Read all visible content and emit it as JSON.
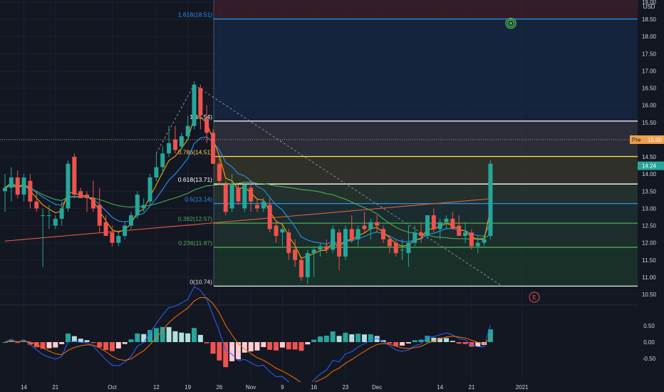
{
  "chart_data": {
    "type": "candlestick",
    "currency": "USD",
    "colors": {
      "bg": "#131722",
      "up": "#26a69a",
      "down": "#ef5350",
      "ma_blue": "#2196f3",
      "ma_orange": "#f7a600",
      "ma_green": "#4caf50",
      "ma_red": "#e65a3c",
      "macd": "#2962ff",
      "signal": "#ff6d00",
      "grid": "#1e2230"
    },
    "price_axis": {
      "min": 10.5,
      "max": 19.0,
      "ticks": [
        "19.00",
        "18.50",
        "18.00",
        "17.50",
        "17.00",
        "16.50",
        "16.00",
        "15.50",
        "15.00",
        "14.50",
        "14.00",
        "13.50",
        "13.00",
        "12.50",
        "12.00",
        "11.50",
        "11.00",
        "10.50"
      ]
    },
    "macd_axis": {
      "ticks": [
        "0.50",
        "0.00",
        "-0.50"
      ]
    },
    "time_ticks": [
      {
        "label": "14",
        "i": 3
      },
      {
        "label": "21",
        "i": 8
      },
      {
        "label": "Oct",
        "i": 17
      },
      {
        "label": "12",
        "i": 24
      },
      {
        "label": "19",
        "i": 29
      },
      {
        "label": "26",
        "i": 34
      },
      {
        "label": "Nov",
        "i": 39
      },
      {
        "label": "9",
        "i": 44
      },
      {
        "label": "16",
        "i": 49
      },
      {
        "label": "23",
        "i": 54
      },
      {
        "label": "Dec",
        "i": 59
      },
      {
        "label": "14",
        "i": 69
      },
      {
        "label": "21",
        "i": 74
      },
      {
        "label": "2021",
        "i": 82
      }
    ],
    "candles": [
      [
        13.5,
        14.0,
        12.9,
        13.6
      ],
      [
        13.6,
        14.2,
        13.2,
        13.9
      ],
      [
        13.9,
        14.1,
        13.3,
        13.4
      ],
      [
        13.4,
        14.0,
        13.2,
        13.9
      ],
      [
        13.8,
        14.0,
        13.0,
        13.2
      ],
      [
        13.2,
        13.5,
        12.9,
        13.0
      ],
      [
        12.8,
        13.0,
        11.3,
        12.8
      ],
      [
        12.8,
        13.1,
        12.4,
        12.8
      ],
      [
        12.5,
        12.8,
        12.4,
        12.7
      ],
      [
        12.7,
        13.2,
        12.5,
        13.0
      ],
      [
        13.0,
        14.4,
        12.9,
        14.3
      ],
      [
        14.5,
        14.6,
        13.3,
        13.4
      ],
      [
        13.5,
        13.6,
        13.3,
        13.3
      ],
      [
        13.4,
        13.5,
        12.9,
        13.3
      ],
      [
        13.3,
        13.8,
        12.9,
        13.0
      ],
      [
        13.1,
        13.6,
        12.3,
        12.5
      ],
      [
        12.6,
        12.8,
        12.2,
        12.2
      ],
      [
        12.3,
        12.5,
        11.9,
        12.0
      ],
      [
        12.0,
        12.3,
        11.9,
        12.2
      ],
      [
        12.2,
        12.6,
        12.1,
        12.5
      ],
      [
        12.5,
        12.9,
        12.4,
        12.8
      ],
      [
        12.8,
        13.5,
        12.7,
        13.4
      ],
      [
        13.0,
        13.3,
        12.9,
        13.1
      ],
      [
        13.2,
        14.0,
        13.1,
        13.9
      ],
      [
        13.9,
        14.6,
        13.8,
        14.2
      ],
      [
        14.2,
        14.8,
        14.0,
        14.6
      ],
      [
        14.6,
        15.4,
        14.5,
        14.9
      ],
      [
        15.0,
        15.4,
        14.6,
        14.7
      ],
      [
        14.8,
        15.2,
        14.7,
        15.1
      ],
      [
        15.1,
        15.7,
        15.0,
        15.4
      ],
      [
        15.4,
        16.7,
        15.3,
        16.6
      ],
      [
        16.5,
        16.6,
        15.3,
        15.7
      ],
      [
        15.6,
        16.0,
        14.9,
        15.2
      ],
      [
        15.2,
        15.3,
        14.3,
        14.3
      ],
      [
        14.3,
        14.5,
        13.7,
        13.8
      ],
      [
        13.7,
        13.8,
        12.8,
        12.9
      ],
      [
        13.0,
        14.0,
        12.9,
        13.7
      ],
      [
        13.6,
        13.7,
        13.1,
        13.2
      ],
      [
        13.0,
        13.7,
        12.9,
        13.7
      ],
      [
        13.6,
        13.8,
        12.9,
        13.2
      ],
      [
        13.1,
        13.3,
        12.9,
        13.0
      ],
      [
        13.0,
        13.3,
        12.9,
        13.2
      ],
      [
        13.1,
        13.3,
        12.3,
        12.4
      ],
      [
        12.5,
        12.6,
        12.0,
        12.2
      ],
      [
        12.3,
        12.5,
        11.9,
        12.4
      ],
      [
        12.3,
        12.4,
        11.5,
        11.7
      ],
      [
        11.8,
        12.1,
        11.3,
        11.5
      ],
      [
        11.5,
        11.6,
        10.9,
        11.0
      ],
      [
        11.0,
        11.8,
        10.8,
        11.7
      ],
      [
        11.7,
        11.9,
        11.0,
        11.8
      ],
      [
        11.8,
        12.0,
        11.6,
        11.9
      ],
      [
        11.9,
        12.1,
        11.7,
        11.8
      ],
      [
        11.8,
        12.5,
        11.7,
        12.4
      ],
      [
        12.3,
        12.4,
        11.2,
        11.6
      ],
      [
        11.6,
        12.5,
        11.5,
        12.4
      ],
      [
        12.4,
        12.8,
        12.0,
        12.1
      ],
      [
        12.1,
        12.5,
        11.9,
        12.4
      ],
      [
        12.5,
        12.9,
        12.3,
        12.4
      ],
      [
        12.4,
        12.7,
        12.1,
        12.6
      ],
      [
        12.6,
        12.8,
        12.3,
        12.5
      ],
      [
        12.4,
        12.5,
        12.0,
        12.1
      ],
      [
        12.1,
        12.2,
        11.7,
        11.9
      ],
      [
        12.0,
        12.1,
        11.6,
        11.7
      ],
      [
        11.8,
        12.1,
        11.5,
        11.8
      ],
      [
        11.7,
        12.5,
        11.3,
        12.0
      ],
      [
        12.0,
        12.5,
        11.9,
        12.3
      ],
      [
        12.3,
        12.6,
        12.0,
        12.2
      ],
      [
        12.2,
        12.8,
        12.1,
        12.8
      ],
      [
        12.8,
        13.0,
        12.3,
        12.4
      ],
      [
        12.4,
        12.7,
        12.1,
        12.6
      ],
      [
        12.6,
        12.8,
        12.4,
        12.7
      ],
      [
        12.7,
        12.9,
        12.4,
        12.4
      ],
      [
        12.5,
        12.8,
        12.2,
        12.2
      ],
      [
        12.2,
        12.6,
        12.0,
        12.3
      ],
      [
        12.3,
        12.4,
        11.8,
        11.9
      ],
      [
        11.9,
        12.2,
        11.7,
        12.0
      ],
      [
        12.0,
        12.2,
        11.9,
        12.1
      ],
      [
        12.2,
        14.4,
        12.1,
        14.3
      ]
    ],
    "fib_levels": [
      {
        "label": "0(10.74)",
        "value": 10.74,
        "color": "#e0e0e0",
        "fill": "#1e3a2a"
      },
      {
        "label": "0.236(11.87)",
        "value": 11.87,
        "color": "#4caf50",
        "fill": "#1c3a2c"
      },
      {
        "label": "0.382(12.57)",
        "value": 12.57,
        "color": "#4caf50",
        "fill": "#20352f"
      },
      {
        "label": "0.5(13.14)",
        "value": 13.14,
        "color": "#2196f3",
        "fill": "#1e3436"
      },
      {
        "label": "0.618(13.71)",
        "value": 13.71,
        "color": "#ffffff",
        "fill": "#2a3a30"
      },
      {
        "label": "0.786(14.51)",
        "value": 14.51,
        "color": "#ffd54f",
        "fill": "#3a3a2a"
      },
      {
        "label": "1(15.54)",
        "value": 15.54,
        "color": "#ffffff",
        "fill": "#333640"
      },
      {
        "label": "1.618(18.51)",
        "value": 18.51,
        "color": "#2196f3",
        "fill": "#172a45"
      }
    ],
    "price_tags": [
      {
        "label": "Pre",
        "value_text": "15.00",
        "value": 15.0,
        "color": "#f0a04b"
      },
      {
        "label": "",
        "value_text": "14.24",
        "value": 14.24,
        "color": "#26a69a"
      }
    ],
    "earnings_marker": "E"
  }
}
